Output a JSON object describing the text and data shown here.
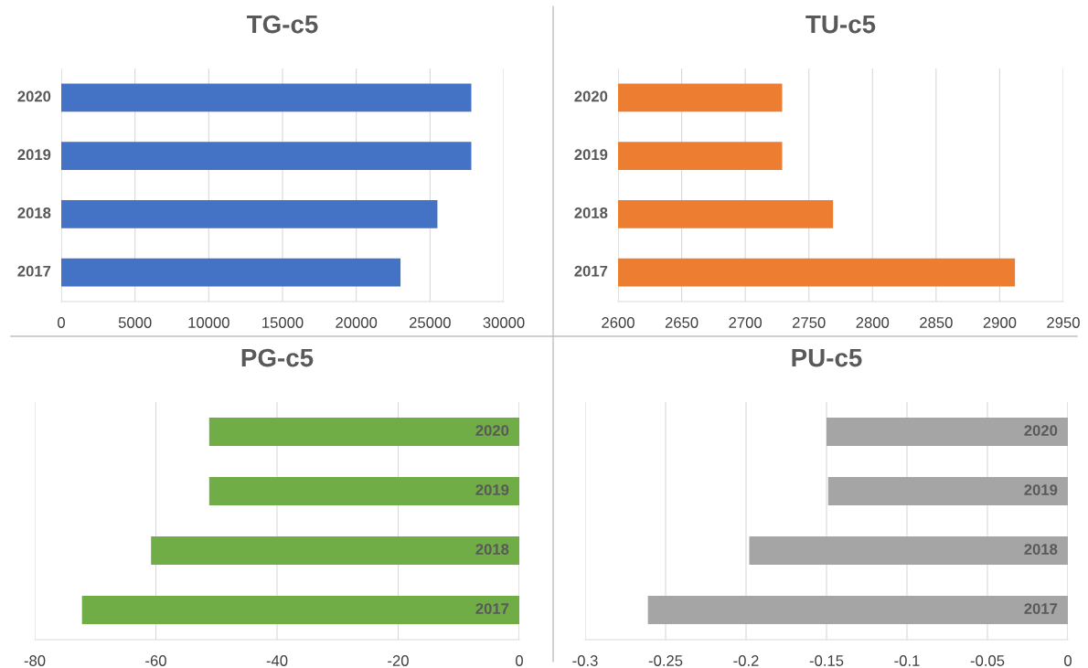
{
  "chart_data": [
    {
      "type": "bar",
      "orientation": "horizontal",
      "title": "TG-c5",
      "categories": [
        "2020",
        "2019",
        "2018",
        "2017"
      ],
      "values": [
        27800,
        27800,
        25500,
        23000
      ],
      "color": "#4472c4",
      "xlim": [
        0,
        30000
      ],
      "xticks": [
        0,
        5000,
        10000,
        15000,
        20000,
        25000,
        30000
      ],
      "grid": "x"
    },
    {
      "type": "bar",
      "orientation": "horizontal",
      "title": "TU-c5",
      "categories": [
        "2020",
        "2019",
        "2018",
        "2017"
      ],
      "values": [
        2729,
        2729,
        2769,
        2912
      ],
      "color": "#ed7d31",
      "xlim": [
        2600,
        2950
      ],
      "xticks": [
        2600,
        2650,
        2700,
        2750,
        2800,
        2850,
        2900,
        2950
      ],
      "grid": "x"
    },
    {
      "type": "bar",
      "orientation": "horizontal",
      "title": "PG-c5",
      "categories": [
        "2020",
        "2019",
        "2018",
        "2017"
      ],
      "values": [
        -51.2,
        -51.2,
        -60.8,
        -72.2
      ],
      "color": "#70ad47",
      "xlim": [
        -80,
        0
      ],
      "xticks": [
        -80,
        -60,
        -40,
        -20,
        0
      ],
      "grid": "x"
    },
    {
      "type": "bar",
      "orientation": "horizontal",
      "title": "PU-c5",
      "categories": [
        "2020",
        "2019",
        "2018",
        "2017"
      ],
      "values": [
        -0.15,
        -0.149,
        -0.198,
        -0.261
      ],
      "color": "#a5a5a5",
      "xlim": [
        -0.3,
        0
      ],
      "xticks": [
        -0.3,
        -0.25,
        -0.2,
        -0.15,
        -0.1,
        -0.05,
        0
      ],
      "grid": "x"
    }
  ]
}
